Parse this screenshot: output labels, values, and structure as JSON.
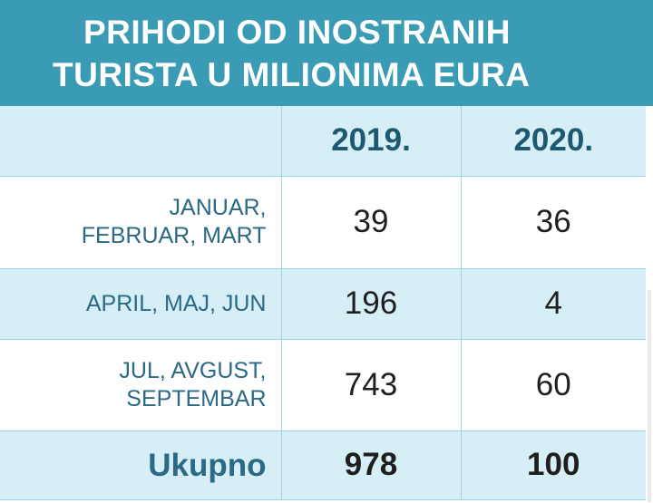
{
  "title": {
    "line1": "PRIHODI OD INOSTRANIH",
    "line2": "TURISTA U MILIONIMA EURA"
  },
  "colors": {
    "header_bg": "#3a9bb4",
    "band_bg": "#d6eef5",
    "label_text": "#2a6a84",
    "year_text": "#1d5a70"
  },
  "chart_data": {
    "type": "table",
    "title": "PRIHODI OD INOSTRANIH TURISTA U MILIONIMA EURA",
    "columns": [
      "",
      "2019.",
      "2020."
    ],
    "rows": [
      {
        "label_lines": [
          "JANUAR,",
          "FEBRUAR, MART"
        ],
        "values": [
          "39",
          "36"
        ]
      },
      {
        "label_lines": [
          "APRIL, MAJ, JUN"
        ],
        "values": [
          "196",
          "4"
        ]
      },
      {
        "label_lines": [
          "JUL, AVGUST,",
          "SEPTEMBAR"
        ],
        "values": [
          "743",
          "60"
        ]
      }
    ],
    "total": {
      "label": "Ukupno",
      "values": [
        "978",
        "100"
      ]
    }
  }
}
